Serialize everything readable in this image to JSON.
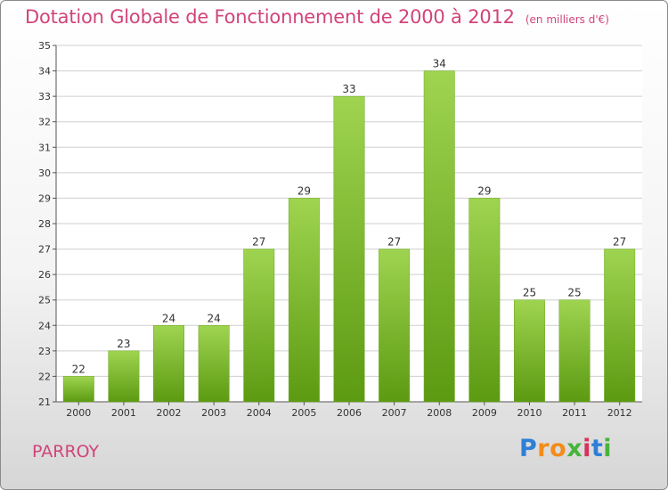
{
  "chart_data": {
    "type": "bar",
    "title": "Dotation Globale de Fonctionnement de 2000 à 2012",
    "subtitle": "(en milliers d'€)",
    "categories": [
      "2000",
      "2001",
      "2002",
      "2003",
      "2004",
      "2005",
      "2006",
      "2007",
      "2008",
      "2009",
      "2010",
      "2011",
      "2012"
    ],
    "values": [
      22,
      23,
      24,
      24,
      27,
      29,
      33,
      27,
      34,
      29,
      25,
      25,
      27
    ],
    "ylim": [
      21,
      35
    ],
    "yticks": [
      21,
      22,
      23,
      24,
      25,
      26,
      27,
      28,
      29,
      30,
      31,
      32,
      33,
      34,
      35
    ],
    "grid": true,
    "bar_color": "#7fbf2e",
    "xlabel": "",
    "ylabel": ""
  },
  "footer": {
    "place": "PARROY",
    "logo": [
      "P",
      "r",
      "o",
      "x",
      "i",
      "t",
      "i"
    ],
    "logo_colors": [
      "#2e7fd6",
      "#f28c1a",
      "#f28c1a",
      "#46b43c",
      "#d6335a",
      "#2e7fd6",
      "#46b43c"
    ]
  },
  "colors": {
    "title": "#d2447a",
    "grid": "#cfcfcf"
  }
}
